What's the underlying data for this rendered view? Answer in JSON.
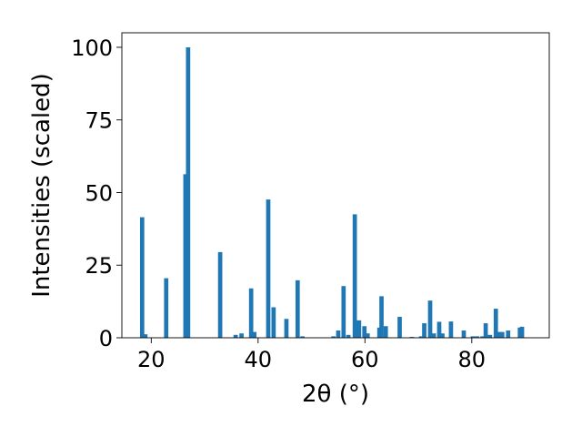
{
  "chart_data": {
    "type": "bar",
    "xlabel": "2θ (°)",
    "ylabel": "Intensities (scaled)",
    "xlim": [
      14.5,
      94.5
    ],
    "ylim": [
      0,
      105
    ],
    "x_ticks": [
      20,
      40,
      60,
      80
    ],
    "y_ticks": [
      0,
      25,
      50,
      75,
      100
    ],
    "bar_color": "#1f77b4",
    "bar_width": 0.8,
    "series": [
      {
        "x": [
          18.3,
          18.9,
          22.8,
          26.4,
          26.9,
          32.9,
          35.8,
          36.9,
          38.7,
          39.3,
          41.9,
          42.9,
          45.3,
          47.4,
          48.3,
          54.1,
          55.0,
          56.0,
          56.9,
          58.1,
          58.9,
          59.9,
          60.5,
          62.7,
          63.1,
          63.9,
          66.5,
          68.8,
          70.5,
          71.1,
          72.2,
          72.9,
          73.9,
          74.5,
          76.1,
          78.5,
          80.2,
          81.0,
          82.0,
          82.6,
          83.4,
          84.5,
          85.1,
          85.7,
          86.8,
          89.0,
          89.4
        ],
        "values": [
          41.5,
          1.2,
          20.5,
          56.3,
          100,
          29.5,
          1.0,
          1.5,
          17.0,
          2.0,
          47.6,
          10.5,
          6.5,
          19.8,
          0.5,
          0.5,
          2.5,
          17.8,
          1.0,
          42.5,
          6.0,
          4.0,
          1.5,
          3.5,
          14.3,
          4.0,
          7.2,
          0.3,
          0.5,
          5.0,
          12.8,
          1.5,
          5.5,
          1.5,
          5.6,
          2.5,
          0.5,
          0.5,
          0.5,
          5.0,
          1.0,
          10.0,
          2.0,
          2.0,
          2.5,
          3.5,
          3.8
        ]
      }
    ]
  }
}
